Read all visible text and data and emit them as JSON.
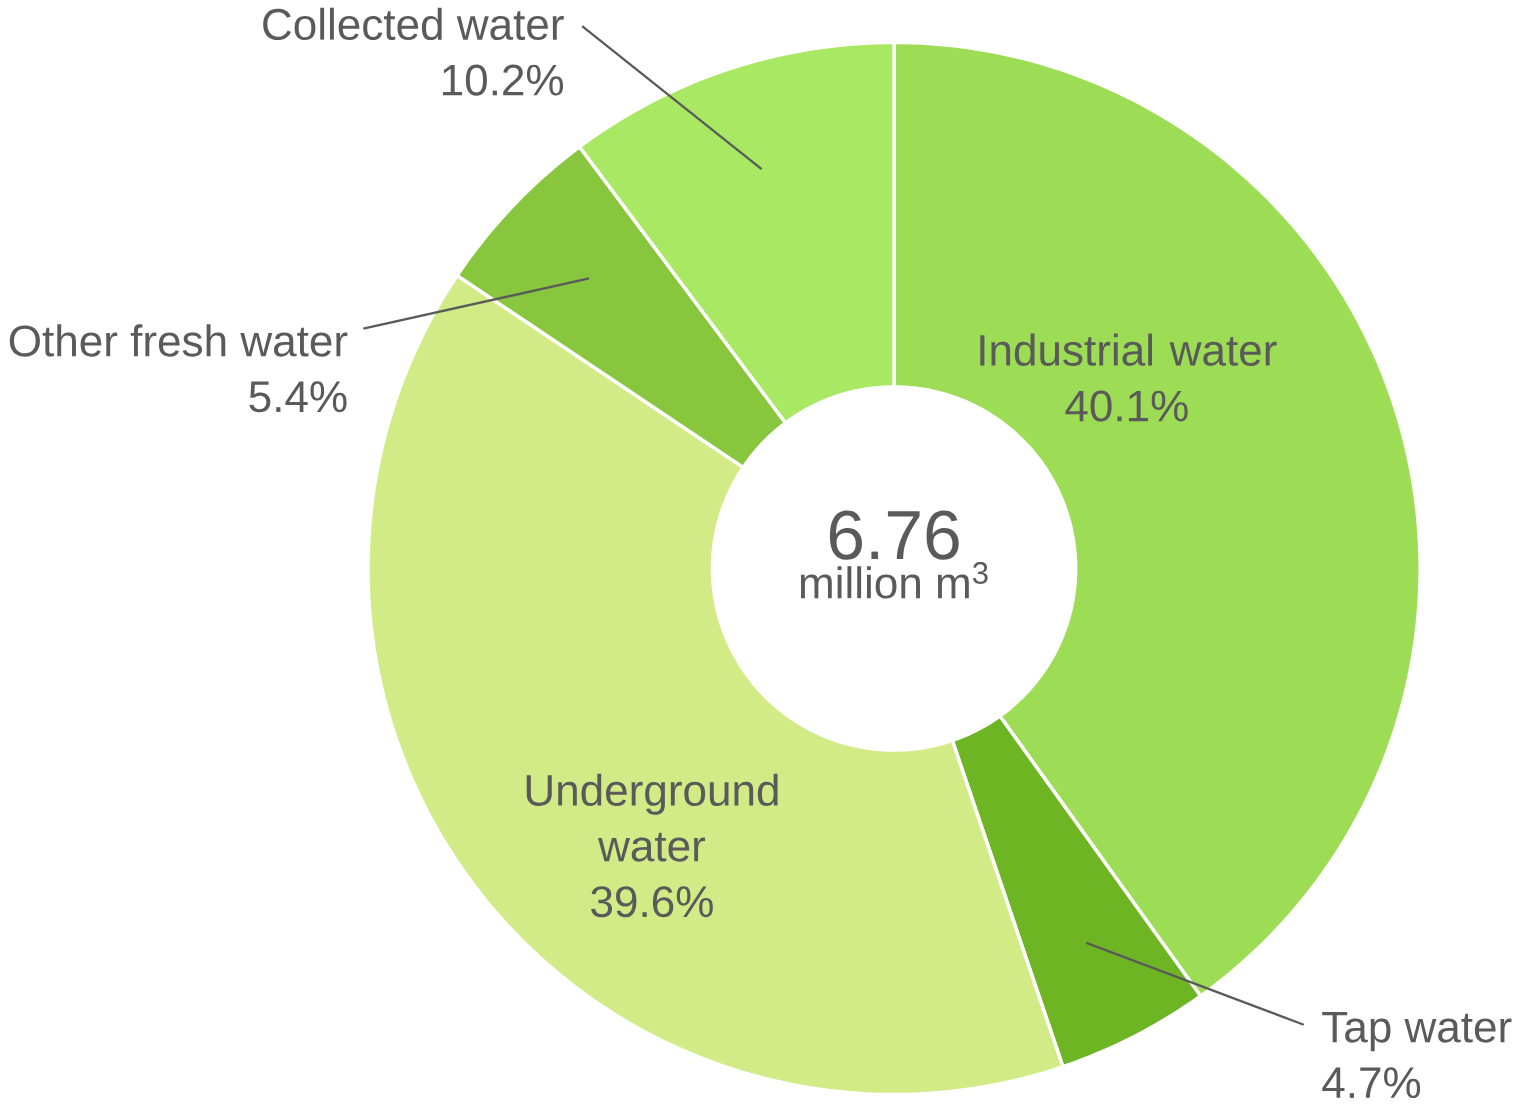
{
  "chart_data": {
    "type": "donut",
    "categories": [
      "Industrial water",
      "Tap water",
      "Underground water",
      "Other fresh water",
      "Collected water"
    ],
    "values": [
      40.1,
      4.7,
      39.6,
      5.4,
      10.2
    ],
    "colors": [
      "#9ddc55",
      "#6db522",
      "#d2eb86",
      "#88c63e",
      "#a9e862"
    ],
    "value_labels": [
      "40.1%",
      "4.7%",
      "39.6%",
      "5.4%",
      "10.2%"
    ],
    "annotations": [
      "6.76",
      "million m$^{3}$"
    ]
  }
}
